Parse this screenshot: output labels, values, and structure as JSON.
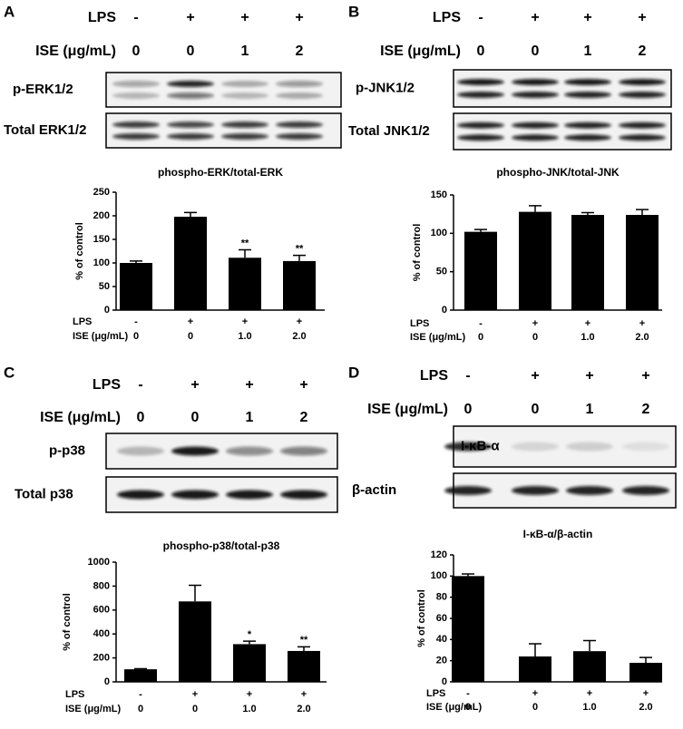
{
  "chart_data": [
    {
      "type": "bar",
      "panel": "A",
      "title": "phospho-ERK/total-ERK",
      "y_label": "% of control",
      "blot": {
        "rows": [
          {
            "label": "LPS",
            "values": [
              "-",
              "+",
              "+",
              "+"
            ]
          },
          {
            "label": "ISE (μg/mL)",
            "values": [
              "0",
              "0",
              "1",
              "2"
            ]
          }
        ],
        "bands": [
          "p-ERK1/2",
          "Total ERK1/2"
        ]
      },
      "x_row_labels": [
        "LPS",
        "ISE (μg/mL)"
      ],
      "categories": [
        [
          "-",
          "0"
        ],
        [
          "+",
          "0"
        ],
        [
          "+",
          "1.0"
        ],
        [
          "+",
          "2.0"
        ]
      ],
      "values": [
        100,
        198,
        111,
        104
      ],
      "errors": [
        4,
        9,
        17,
        12
      ],
      "value_annotations": [
        null,
        null,
        "**",
        "**"
      ],
      "color": "#000000",
      "ylim": [
        0,
        250
      ],
      "yticks": [
        0,
        50,
        100,
        150,
        200,
        250
      ]
    },
    {
      "type": "bar",
      "panel": "B",
      "title": "phospho-JNK/total-JNK",
      "y_label": "% of control",
      "blot": {
        "rows": [
          {
            "label": "LPS",
            "values": [
              "-",
              "+",
              "+",
              "+"
            ]
          },
          {
            "label": "ISE (μg/mL)",
            "values": [
              "0",
              "0",
              "1",
              "2"
            ]
          }
        ],
        "bands": [
          "p-JNK1/2",
          "Total JNK1/2"
        ]
      },
      "x_row_labels": [
        "LPS",
        "ISE (μg/mL)"
      ],
      "categories": [
        [
          "-",
          "0"
        ],
        [
          "+",
          "0"
        ],
        [
          "+",
          "1.0"
        ],
        [
          "+",
          "2.0"
        ]
      ],
      "values": [
        102,
        128,
        124,
        124
      ],
      "errors": [
        3,
        8,
        3,
        7
      ],
      "value_annotations": [
        null,
        null,
        null,
        null
      ],
      "color": "#000000",
      "ylim": [
        0,
        150
      ],
      "yticks": [
        0,
        50,
        100,
        150
      ]
    },
    {
      "type": "bar",
      "panel": "C",
      "title": "phospho-p38/total-p38",
      "y_label": "% of control",
      "blot": {
        "rows": [
          {
            "label": "LPS",
            "values": [
              "-",
              "+",
              "+",
              "+"
            ]
          },
          {
            "label": "ISE (μg/mL)",
            "values": [
              "0",
              "0",
              "1",
              "2"
            ]
          }
        ],
        "bands": [
          "p-p38",
          "Total p38"
        ]
      },
      "x_row_labels": [
        "LPS",
        "ISE (μg/mL)"
      ],
      "categories": [
        [
          "-",
          "0"
        ],
        [
          "+",
          "0"
        ],
        [
          "+",
          "1.0"
        ],
        [
          "+",
          "2.0"
        ]
      ],
      "values": [
        105,
        672,
        315,
        258
      ],
      "errors": [
        5,
        135,
        25,
        35
      ],
      "value_annotations": [
        null,
        null,
        "*",
        "**"
      ],
      "color": "#000000",
      "ylim": [
        0,
        1000
      ],
      "yticks": [
        0,
        200,
        400,
        600,
        800,
        1000
      ]
    },
    {
      "type": "bar",
      "panel": "D",
      "title": "I-κB-α/β-actin",
      "y_label": "% of control",
      "blot": {
        "rows": [
          {
            "label": "LPS",
            "values": [
              "-",
              "+",
              "+",
              "+"
            ]
          },
          {
            "label": "ISE (μg/mL)",
            "values": [
              "0",
              "0",
              "1",
              "2"
            ]
          }
        ],
        "bands": [
          "I-κB-α",
          "β-actin"
        ]
      },
      "x_row_labels": [
        "LPS",
        "ISE (μg/mL)"
      ],
      "categories": [
        [
          "-",
          "0"
        ],
        [
          "+",
          "0"
        ],
        [
          "+",
          "1.0"
        ],
        [
          "+",
          "2.0"
        ]
      ],
      "values": [
        100,
        24,
        29,
        18
      ],
      "errors": [
        2,
        12,
        10,
        5
      ],
      "value_annotations": [
        null,
        null,
        null,
        null
      ],
      "color": "#000000",
      "ylim": [
        0,
        120
      ],
      "yticks": [
        0,
        20,
        40,
        60,
        80,
        100,
        120
      ]
    }
  ]
}
